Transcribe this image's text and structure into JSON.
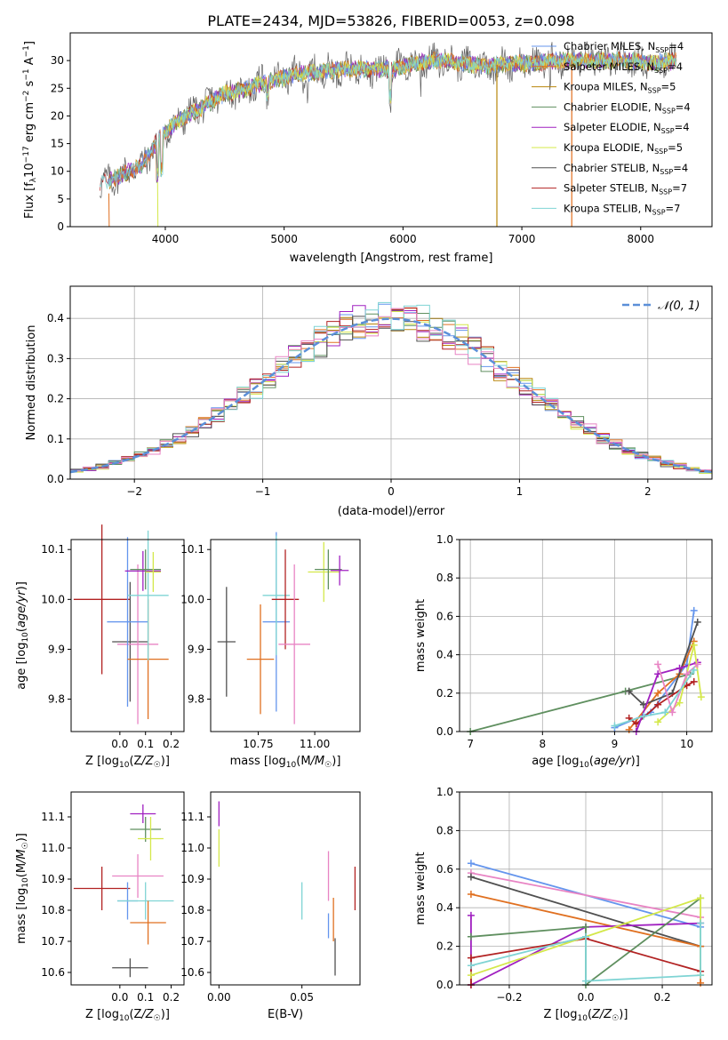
{
  "title": "PLATE=2434, MJD=53826, FIBERID=0053, z=0.098",
  "colors": {
    "Chabrier MILES": "#6495ed",
    "Salpeter MILES": "#e07020",
    "Kroupa MILES": "#b8860b",
    "Chabrier ELODIE": "#5f8f5f",
    "Salpeter ELODIE": "#a020c0",
    "Kroupa ELODIE": "#d4e84a",
    "Chabrier STELIB": "#505050",
    "Salpeter STELIB": "#b22222",
    "Kroupa STELIB": "#7fd4d4",
    "pink": "#e884c4",
    "gaussian": "#5b8fd8"
  },
  "legend": [
    "Chabrier MILES, N_SSP=4",
    "Salpeter MILES, N_SSP=4",
    "Kroupa MILES, N_SSP=5",
    "Chabrier ELODIE, N_SSP=4",
    "Salpeter ELODIE, N_SSP=4",
    "Kroupa ELODIE, N_SSP=5",
    "Chabrier STELIB, N_SSP=4",
    "Salpeter STELIB, N_SSP=7",
    "Kroupa STELIB, N_SSP=7"
  ],
  "chart_data": [
    {
      "type": "line",
      "id": "spectrum",
      "title": "PLATE=2434, MJD=53826, FIBERID=0053, z=0.098",
      "xlabel": "wavelength [Angstrom, rest frame]",
      "ylabel": "Flux [f_λ 10^-17 erg cm^-2 s^-1 A^-1]",
      "xlim": [
        3200,
        8600
      ],
      "ylim": [
        0,
        35
      ],
      "xticks": [
        4000,
        5000,
        6000,
        7000,
        8000
      ],
      "yticks": [
        0,
        5,
        10,
        15,
        20,
        25,
        30
      ],
      "continuum_x": [
        3450,
        3600,
        3800,
        3950,
        4100,
        4300,
        4500,
        4700,
        4900,
        5100,
        5300,
        5500,
        5700,
        5900,
        6100,
        6300,
        6500,
        6700,
        6900,
        7100,
        7300,
        7500,
        7700,
        7900,
        8100,
        8300
      ],
      "continuum_y": [
        7.5,
        9,
        11,
        16,
        19,
        21.5,
        24,
        25,
        26.5,
        27.5,
        28,
        28.5,
        28.5,
        28.5,
        29.5,
        30,
        29.5,
        29,
        29.5,
        29.5,
        30,
        30,
        30,
        30,
        29.5,
        30
      ],
      "drops": [
        [
          6790,
          "#b8860b"
        ],
        [
          7420,
          "#e07020"
        ]
      ],
      "grid": false,
      "legend_position": "right"
    },
    {
      "type": "line",
      "id": "residuals",
      "xlabel": "(data-model)/error",
      "ylabel": "Normed distribution",
      "xlim": [
        -2.5,
        2.5
      ],
      "ylim": [
        0,
        0.48
      ],
      "xticks": [
        -2,
        -1,
        0,
        1,
        2
      ],
      "yticks": [
        0,
        0.1,
        0.2,
        0.3,
        0.4
      ],
      "legend": "𝒩(0, 1)",
      "grid": true,
      "legend_position": "top-right"
    },
    {
      "type": "scatter",
      "id": "age-vs-Z",
      "xlabel": "Z [log10(Z/Z☉)]",
      "ylabel": "age  [log10(age/yr)]",
      "xlim": [
        -0.19,
        0.25
      ],
      "ylim": [
        9.735,
        10.12
      ],
      "xticks": [
        0.0,
        0.1,
        0.2
      ],
      "yticks": [
        9.8,
        9.9,
        10.0,
        10.1
      ],
      "points": [
        {
          "series": "Salpeter STELIB",
          "x": -0.07,
          "y": 10.0,
          "xerr": 0.11,
          "yerr": 0.15
        },
        {
          "series": "Chabrier STELIB",
          "x": 0.04,
          "y": 9.915,
          "xerr": 0.07,
          "yerr": 0.12
        },
        {
          "series": "pink",
          "x": 0.07,
          "y": 9.91,
          "xerr": 0.08,
          "yerr": 0.16
        },
        {
          "series": "Chabrier MILES",
          "x": 0.03,
          "y": 9.955,
          "xerr": 0.08,
          "yerr": 0.17
        },
        {
          "series": "Salpeter MILES",
          "x": 0.11,
          "y": 9.88,
          "xerr": 0.08,
          "yerr": 0.12
        },
        {
          "series": "Kroupa STELIB",
          "x": 0.11,
          "y": 10.008,
          "xerr": 0.08,
          "yerr": 0.13
        },
        {
          "series": "Salpeter ELODIE",
          "x": 0.09,
          "y": 10.057,
          "xerr": 0.07,
          "yerr": 0.04
        },
        {
          "series": "Chabrier ELODIE",
          "x": 0.1,
          "y": 10.06,
          "xerr": 0.06,
          "yerr": 0.04
        },
        {
          "series": "Kroupa ELODIE",
          "x": 0.13,
          "y": 10.055,
          "xerr": 0.03,
          "yerr": 0.04
        }
      ]
    },
    {
      "type": "scatter",
      "id": "age-vs-mass",
      "xlabel": "mass [log10(M/M☉)]",
      "ylabel": "",
      "xlim": [
        10.54,
        11.2
      ],
      "ylim": [
        9.735,
        10.12
      ],
      "xticks": [
        10.75,
        11.0
      ],
      "yticks": [
        9.8,
        9.9,
        10.0,
        10.1
      ],
      "points": [
        {
          "series": "Chabrier STELIB",
          "x": 10.61,
          "y": 9.915,
          "xerr": 0.04,
          "yerr": 0.11
        },
        {
          "series": "Salpeter MILES",
          "x": 10.76,
          "y": 9.88,
          "xerr": 0.06,
          "yerr": 0.11
        },
        {
          "series": "Chabrier MILES",
          "x": 10.83,
          "y": 9.955,
          "xerr": 0.06,
          "yerr": 0.18
        },
        {
          "series": "Kroupa STELIB",
          "x": 10.83,
          "y": 10.008,
          "xerr": 0.06,
          "yerr": 0.12
        },
        {
          "series": "Salpeter STELIB",
          "x": 10.87,
          "y": 10.0,
          "xerr": 0.06,
          "yerr": 0.1
        },
        {
          "series": "pink",
          "x": 10.91,
          "y": 9.91,
          "xerr": 0.07,
          "yerr": 0.16
        },
        {
          "series": "Kroupa ELODIE",
          "x": 11.04,
          "y": 10.055,
          "xerr": 0.07,
          "yerr": 0.06
        },
        {
          "series": "Chabrier ELODIE",
          "x": 11.06,
          "y": 10.06,
          "xerr": 0.06,
          "yerr": 0.04
        },
        {
          "series": "Salpeter ELODIE",
          "x": 11.11,
          "y": 10.058,
          "xerr": 0.04,
          "yerr": 0.03
        }
      ]
    },
    {
      "type": "line",
      "id": "mass-weight-vs-age",
      "xlabel": "age  [log10(age/yr)]",
      "ylabel": "mass weight",
      "xlim": [
        6.85,
        10.35
      ],
      "ylim": [
        0,
        1.0
      ],
      "xticks": [
        7,
        8,
        9,
        10
      ],
      "yticks": [
        0.0,
        0.2,
        0.4,
        0.6,
        0.8,
        1.0
      ],
      "grid": true,
      "series": [
        {
          "name": "Chabrier ELODIE",
          "x": [
            7.0,
            9.15,
            10.05
          ],
          "y": [
            0.0,
            0.21,
            0.3
          ]
        },
        {
          "name": "Chabrier MILES",
          "x": [
            9.0,
            9.5,
            10.0,
            10.1
          ],
          "y": [
            0.02,
            0.1,
            0.35,
            0.63
          ]
        },
        {
          "name": "Salpeter MILES",
          "x": [
            9.2,
            9.6,
            9.9,
            10.1
          ],
          "y": [
            0.01,
            0.2,
            0.3,
            0.47
          ]
        },
        {
          "name": "Chabrier STELIB",
          "x": [
            9.2,
            9.4,
            9.8,
            10.15
          ],
          "y": [
            0.21,
            0.14,
            0.2,
            0.57
          ]
        },
        {
          "name": "Salpeter STELIB",
          "x": [
            9.2,
            9.3,
            9.6,
            10.0,
            10.1
          ],
          "y": [
            0.07,
            0.04,
            0.14,
            0.24,
            0.26
          ]
        },
        {
          "name": "Salpeter ELODIE",
          "x": [
            9.3,
            9.6,
            9.9,
            10.15
          ],
          "y": [
            0.0,
            0.3,
            0.33,
            0.36
          ]
        },
        {
          "name": "Kroupa ELODIE",
          "x": [
            9.6,
            9.9,
            10.1,
            10.2
          ],
          "y": [
            0.05,
            0.15,
            0.45,
            0.18
          ]
        },
        {
          "name": "pink",
          "x": [
            9.6,
            9.8,
            10.0,
            10.15
          ],
          "y": [
            0.35,
            0.1,
            0.3,
            0.35
          ]
        },
        {
          "name": "Kroupa STELIB",
          "x": [
            9.0,
            9.4,
            9.7,
            10.1
          ],
          "y": [
            0.03,
            0.08,
            0.1,
            0.32
          ]
        }
      ]
    },
    {
      "type": "scatter",
      "id": "mass-vs-Z",
      "xlabel": "Z [log10(Z/Z☉)]",
      "ylabel": "mass [log10(M/M☉)]",
      "xlim": [
        -0.19,
        0.25
      ],
      "ylim": [
        10.56,
        11.18
      ],
      "xticks": [
        0.0,
        0.1,
        0.2
      ],
      "yticks": [
        10.6,
        10.7,
        10.8,
        10.9,
        11.0,
        11.1
      ],
      "points": [
        {
          "series": "Salpeter STELIB",
          "x": -0.07,
          "y": 10.87,
          "xerr": 0.11,
          "yerr": 0.07
        },
        {
          "series": "pink",
          "x": 0.07,
          "y": 10.91,
          "xerr": 0.1,
          "yerr": 0.07
        },
        {
          "series": "Chabrier MILES",
          "x": 0.03,
          "y": 10.83,
          "xerr": 0.04,
          "yerr": 0.06
        },
        {
          "series": "Kroupa STELIB",
          "x": 0.1,
          "y": 10.83,
          "xerr": 0.11,
          "yerr": 0.06
        },
        {
          "series": "Salpeter MILES",
          "x": 0.11,
          "y": 10.76,
          "xerr": 0.07,
          "yerr": 0.07
        },
        {
          "series": "Chabrier STELIB",
          "x": 0.04,
          "y": 10.615,
          "xerr": 0.07,
          "yerr": 0.03
        },
        {
          "series": "Salpeter ELODIE",
          "x": 0.09,
          "y": 11.11,
          "xerr": 0.05,
          "yerr": 0.03
        },
        {
          "series": "Chabrier ELODIE",
          "x": 0.1,
          "y": 11.06,
          "xerr": 0.06,
          "yerr": 0.04
        },
        {
          "series": "Kroupa ELODIE",
          "x": 0.12,
          "y": 11.03,
          "xerr": 0.05,
          "yerr": 0.07
        }
      ]
    },
    {
      "type": "scatter",
      "id": "mass-vs-EBV",
      "xlabel": "E(B-V)",
      "ylabel": "",
      "xlim": [
        -0.005,
        0.085
      ],
      "ylim": [
        10.56,
        11.18
      ],
      "xticks": [
        0.0,
        0.05
      ],
      "yticks": [
        10.6,
        10.7,
        10.8,
        10.9,
        11.0,
        11.1
      ],
      "points": [
        {
          "series": "Salpeter ELODIE",
          "x": 0.0,
          "y": 11.11,
          "xerr": 0,
          "yerr": 0.04
        },
        {
          "series": "Kroupa ELODIE",
          "x": 0.0,
          "y": 11.0,
          "xerr": 0,
          "yerr": 0.06
        },
        {
          "series": "Kroupa STELIB",
          "x": 0.05,
          "y": 10.83,
          "xerr": 0,
          "yerr": 0.06
        },
        {
          "series": "pink",
          "x": 0.066,
          "y": 10.91,
          "xerr": 0,
          "yerr": 0.08
        },
        {
          "series": "Chabrier MILES",
          "x": 0.066,
          "y": 10.75,
          "xerr": 0,
          "yerr": 0.04
        },
        {
          "series": "Salpeter MILES",
          "x": 0.069,
          "y": 10.77,
          "xerr": 0,
          "yerr": 0.07
        },
        {
          "series": "Chabrier STELIB",
          "x": 0.07,
          "y": 10.65,
          "xerr": 0,
          "yerr": 0.06
        },
        {
          "series": "Salpeter STELIB",
          "x": 0.082,
          "y": 10.87,
          "xerr": 0,
          "yerr": 0.07
        }
      ]
    },
    {
      "type": "line",
      "id": "mass-weight-vs-Z",
      "xlabel": "Z [log10(Z/Z☉)]",
      "ylabel": "mass weight",
      "xlim": [
        -0.33,
        0.33
      ],
      "ylim": [
        0,
        1.0
      ],
      "xticks": [
        -0.2,
        0.0,
        0.2
      ],
      "yticks": [
        0.0,
        0.2,
        0.4,
        0.6,
        0.8,
        1.0
      ],
      "grid": true,
      "series": [
        {
          "name": "Chabrier MILES",
          "x": [
            -0.3,
            0.3
          ],
          "y": [
            0.63,
            0.3
          ]
        },
        {
          "name": "pink",
          "x": [
            -0.3,
            0.3
          ],
          "y": [
            0.58,
            0.35
          ]
        },
        {
          "name": "Chabrier STELIB",
          "x": [
            -0.3,
            0.3
          ],
          "y": [
            0.56,
            0.2
          ]
        },
        {
          "name": "Salpeter MILES",
          "x": [
            -0.3,
            0.3,
            0.3
          ],
          "y": [
            0.47,
            0.2,
            0.01
          ]
        },
        {
          "name": "Salpeter ELODIE",
          "x": [
            -0.3,
            -0.3,
            0.0,
            0.3
          ],
          "y": [
            0.36,
            0.0,
            0.3,
            0.32
          ]
        },
        {
          "name": "Chabrier ELODIE",
          "x": [
            -0.3,
            0.0,
            0.0,
            0.3
          ],
          "y": [
            0.25,
            0.3,
            0.0,
            0.45
          ]
        },
        {
          "name": "Salpeter STELIB",
          "x": [
            -0.3,
            -0.3,
            0.0,
            0.3
          ],
          "y": [
            0.0,
            0.14,
            0.24,
            0.07
          ]
        },
        {
          "name": "Kroupa ELODIE",
          "x": [
            -0.3,
            0.3,
            0.3
          ],
          "y": [
            0.05,
            0.45,
            0.05
          ]
        },
        {
          "name": "Kroupa STELIB",
          "x": [
            -0.3,
            0.0,
            0.0,
            0.3,
            0.3
          ],
          "y": [
            0.1,
            0.25,
            0.02,
            0.05,
            0.32
          ]
        }
      ]
    }
  ]
}
